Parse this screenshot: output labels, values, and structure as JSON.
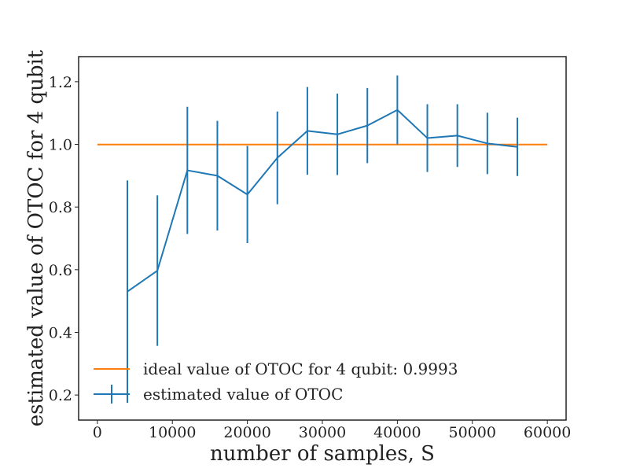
{
  "chart_data": {
    "type": "line",
    "title": "",
    "xlabel": "number of samples, S",
    "ylabel": "estimated value of OTOC for 4 qubit",
    "xlim": [
      -2500,
      62500
    ],
    "ylim": [
      0.12,
      1.28
    ],
    "xticks": [
      0,
      10000,
      20000,
      30000,
      40000,
      50000,
      60000
    ],
    "xtick_labels": [
      "0",
      "10000",
      "20000",
      "30000",
      "40000",
      "50000",
      "60000"
    ],
    "yticks": [
      0.2,
      0.4,
      0.6,
      0.8,
      1.0,
      1.2
    ],
    "ytick_labels": [
      "0.2",
      "0.4",
      "0.6",
      "0.8",
      "1.0",
      "1.2"
    ],
    "grid": false,
    "legend_position": "bottom-left",
    "series": [
      {
        "name": "ideal value of OTOC for 4 qubit: 0.9993",
        "kind": "line",
        "color": "#ff7f0e",
        "x": [
          0,
          60000
        ],
        "y": [
          0.9993,
          0.9993
        ]
      },
      {
        "name": "estimated value of OTOC",
        "kind": "errorbar",
        "color": "#1f77b4",
        "x": [
          4000,
          8000,
          12000,
          16000,
          20000,
          24000,
          28000,
          32000,
          36000,
          40000,
          44000,
          48000,
          52000,
          56000
        ],
        "y": [
          0.53,
          0.597,
          0.917,
          0.9,
          0.84,
          0.957,
          1.043,
          1.032,
          1.06,
          1.11,
          1.02,
          1.028,
          1.003,
          0.992
        ],
        "yerr": [
          0.355,
          0.24,
          0.203,
          0.175,
          0.155,
          0.148,
          0.14,
          0.13,
          0.12,
          0.11,
          0.108,
          0.1,
          0.098,
          0.093
        ]
      }
    ]
  }
}
